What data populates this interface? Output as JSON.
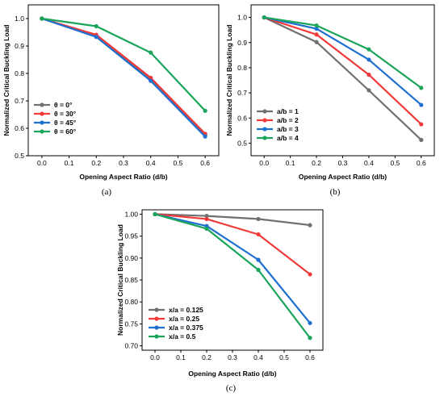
{
  "chart_data": [
    {
      "type": "line",
      "caption": "(a)",
      "xlabel": "Opening Aspect Ratio (d/b)",
      "ylabel": "Normalized Critical Buckling Load",
      "xlim": [
        -0.05,
        0.65
      ],
      "ylim": [
        0.5,
        1.05
      ],
      "xticks": [
        "0.0",
        "0.1",
        "0.2",
        "0.3",
        "0.4",
        "0.5",
        "0.6"
      ],
      "yticks": [
        "0.5",
        "0.6",
        "0.7",
        "0.8",
        "0.9",
        "1.0"
      ],
      "legend_position": "bottom-left",
      "x": [
        0.0,
        0.2,
        0.4,
        0.6
      ],
      "series": [
        {
          "name": "θ = 0°",
          "color": "#707070",
          "values": [
            1.0,
            0.937,
            0.78,
            0.576
          ]
        },
        {
          "name": "θ = 30°",
          "color": "#f03a3a",
          "values": [
            1.0,
            0.941,
            0.784,
            0.58
          ]
        },
        {
          "name": "θ = 45°",
          "color": "#1f6fd1",
          "values": [
            1.0,
            0.933,
            0.773,
            0.57
          ]
        },
        {
          "name": "θ = 60°",
          "color": "#1aa55a",
          "values": [
            1.0,
            0.972,
            0.876,
            0.664
          ]
        }
      ]
    },
    {
      "type": "line",
      "caption": "(b)",
      "xlabel": "Opening Aspect Ratio (d/b)",
      "ylabel": "Normalized Critical Buckling Load",
      "xlim": [
        -0.05,
        0.65
      ],
      "ylim": [
        0.45,
        1.05
      ],
      "xticks": [
        "0.0",
        "0.1",
        "0.2",
        "0.3",
        "0.4",
        "0.5",
        "0.6"
      ],
      "yticks": [
        "0.5",
        "0.6",
        "0.7",
        "0.8",
        "0.9",
        "1.0"
      ],
      "legend_position": "bottom-left",
      "x": [
        0.0,
        0.2,
        0.4,
        0.6
      ],
      "series": [
        {
          "name": "a/b = 1",
          "color": "#707070",
          "values": [
            1.0,
            0.902,
            0.71,
            0.513
          ]
        },
        {
          "name": "a/b = 2",
          "color": "#f03a3a",
          "values": [
            1.0,
            0.932,
            0.772,
            0.575
          ]
        },
        {
          "name": "a/b = 3",
          "color": "#1f6fd1",
          "values": [
            1.0,
            0.955,
            0.832,
            0.652
          ]
        },
        {
          "name": "a/b = 4",
          "color": "#1aa55a",
          "values": [
            1.0,
            0.968,
            0.873,
            0.72
          ]
        }
      ]
    },
    {
      "type": "line",
      "caption": "(c)",
      "xlabel": "Opening Aspect Ratio (d/b)",
      "ylabel": "Normalized Critical Buckling Load",
      "xlim": [
        -0.05,
        0.65
      ],
      "ylim": [
        0.69,
        1.01
      ],
      "xticks": [
        "0.0",
        "0.1",
        "0.2",
        "0.3",
        "0.4",
        "0.5",
        "0.6"
      ],
      "yticks": [
        "0.70",
        "0.75",
        "0.80",
        "0.85",
        "0.90",
        "0.95",
        "1.00"
      ],
      "legend_position": "bottom-left",
      "x": [
        0.0,
        0.2,
        0.4,
        0.6
      ],
      "series": [
        {
          "name": "x/a = 0.125",
          "color": "#707070",
          "values": [
            1.0,
            0.996,
            0.989,
            0.975
          ]
        },
        {
          "name": "x/a = 0.25",
          "color": "#f03a3a",
          "values": [
            1.0,
            0.989,
            0.954,
            0.863
          ]
        },
        {
          "name": "x/a = 0.375",
          "color": "#1f6fd1",
          "values": [
            1.0,
            0.973,
            0.896,
            0.752
          ]
        },
        {
          "name": "x/a = 0.5",
          "color": "#1aa55a",
          "values": [
            1.0,
            0.967,
            0.873,
            0.718
          ]
        }
      ]
    }
  ]
}
